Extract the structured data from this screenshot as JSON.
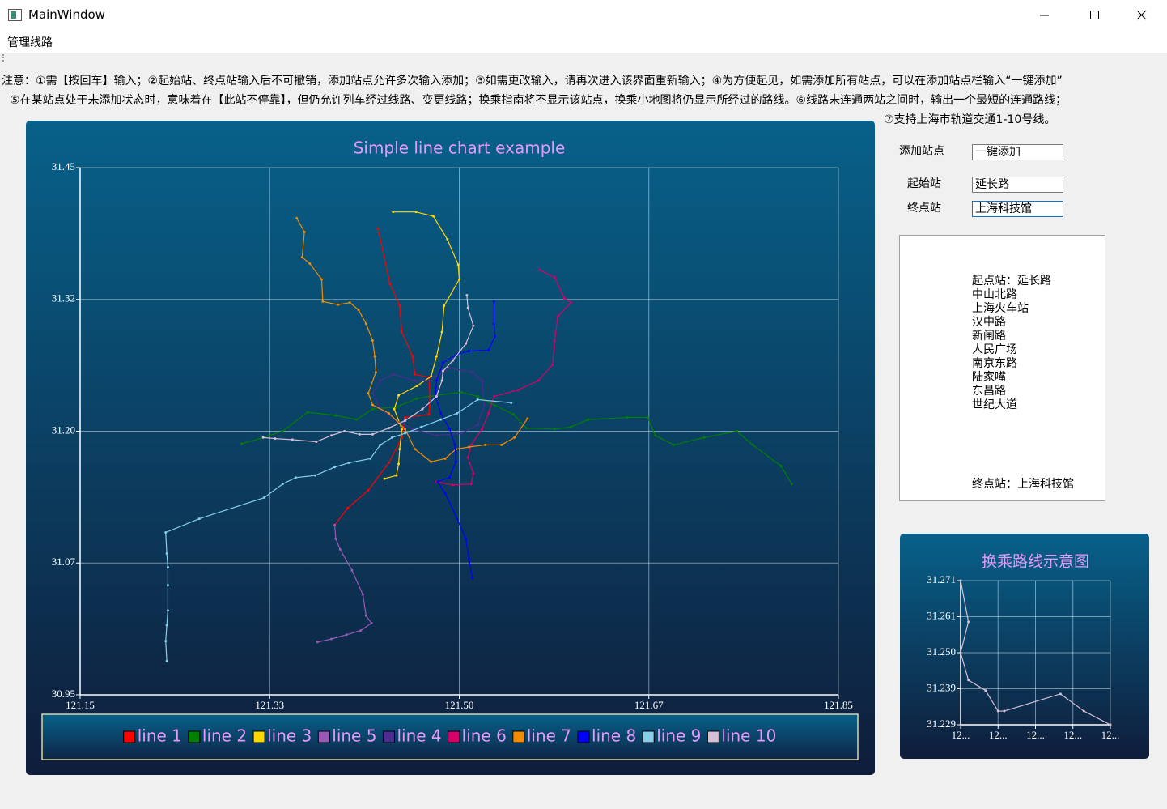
{
  "window": {
    "title": "MainWindow"
  },
  "menu": [
    "管理线路"
  ],
  "notes": [
    "注意：①需【按回车】输入；②起始站、终点站输入后不可撤销，添加站点允许多次输入添加；③如需更改输入，请再次进入该界面重新输入；④为方便起见，如需添加所有站点，可以在添加站点栏输入“一键添加”",
    "⑤在某站点处于未添加状态时，意味着在【此站不停靠】，但仍允许列车经过线路、变更线路；换乘指南将不显示该站点，换乘小地图将仍显示所经过的路线。⑥线路未连通两站之间时，输出一个最短的连通路线；",
    "⑦支持上海市轨道交通1-10号线。"
  ],
  "form": {
    "add_label": "添加站点",
    "add_value": "一键添加",
    "start_label": "起始站",
    "start_value": "延长路",
    "end_label": "终点站",
    "end_value": "上海科技馆"
  },
  "route_text": {
    "start": "起点站：延长路",
    "stations": [
      "中山北路",
      "上海火车站",
      "汉中路",
      "新闸路",
      "人民广场",
      "南京东路",
      "陆家嘴",
      "东昌路",
      "世纪大道"
    ],
    "end": "终点站：上海科技馆"
  },
  "chart_data": [
    {
      "type": "line",
      "title": "Simple line chart example",
      "legend": "bottom",
      "grid": true,
      "xlim": [
        121.15,
        121.85
      ],
      "ylim": [
        30.95,
        31.45
      ],
      "xticks": [
        121.15,
        {
          "value": 121.325,
          "label": "121.33"
        },
        {
          "value": 121.5,
          "label": "121.50"
        },
        {
          "value": 121.675,
          "label": "121.67"
        },
        121.85
      ],
      "yticks": [
        30.95,
        {
          "value": 31.075,
          "label": "31.07"
        },
        {
          "value": 31.2,
          "label": "31.20"
        },
        {
          "value": 31.325,
          "label": "31.32"
        },
        31.45
      ],
      "series": [
        {
          "name": "line 1",
          "color": "#ff0000",
          "x": [
            121.425,
            121.436,
            121.445,
            121.447,
            121.457,
            121.459,
            121.472,
            121.473,
            121.472,
            121.45,
            121.447,
            121.435,
            121.416,
            121.397,
            121.385
          ],
          "values": [
            31.392,
            31.34,
            31.319,
            31.294,
            31.271,
            31.254,
            31.251,
            31.233,
            31.216,
            31.213,
            31.194,
            31.17,
            31.144,
            31.127,
            31.111
          ]
        },
        {
          "name": "line 2",
          "color": "#008000",
          "x": [
            121.299,
            121.319,
            121.337,
            121.36,
            121.386,
            121.405,
            121.42,
            121.442,
            121.461,
            121.479,
            121.502,
            121.517,
            121.532,
            121.55,
            121.562,
            121.588,
            121.603,
            121.619,
            121.655,
            121.674,
            121.681,
            121.698,
            121.726,
            121.756,
            121.771,
            121.797,
            121.807
          ],
          "values": [
            31.188,
            31.194,
            31.2,
            31.218,
            31.215,
            31.211,
            31.221,
            31.223,
            31.231,
            31.234,
            31.237,
            31.233,
            31.225,
            31.216,
            31.203,
            31.202,
            31.204,
            31.211,
            31.213,
            31.213,
            31.196,
            31.187,
            31.194,
            31.2,
            31.187,
            31.167,
            31.15
          ]
        },
        {
          "name": "line 3",
          "color": "#ffd700",
          "x": [
            121.439,
            121.46,
            121.476,
            121.489,
            121.499,
            121.5,
            121.486,
            121.484,
            121.479,
            121.474,
            121.461,
            121.444,
            121.44,
            121.447,
            121.445,
            121.444,
            121.442,
            121.431
          ],
          "values": [
            31.408,
            31.408,
            31.404,
            31.382,
            31.358,
            31.344,
            31.319,
            31.294,
            31.271,
            31.252,
            31.243,
            31.234,
            31.221,
            31.202,
            31.183,
            31.169,
            31.158,
            31.155
          ]
        },
        {
          "name": "line 5",
          "color": "#9b59b6",
          "x": [
            121.385,
            121.386,
            121.39,
            121.401,
            121.411,
            121.414,
            121.419,
            121.409,
            121.396,
            121.382,
            121.369
          ],
          "values": [
            31.111,
            31.098,
            31.088,
            31.068,
            31.045,
            31.025,
            31.018,
            31.011,
            31.007,
            31.003,
            31.0
          ]
        },
        {
          "name": "line 4",
          "color": "#4b2c8f",
          "x": [
            121.439,
            121.459,
            121.472,
            121.491,
            121.512,
            121.521,
            121.523,
            121.517,
            121.502,
            121.479,
            121.457,
            121.442,
            121.427,
            121.42,
            121.427,
            121.439
          ],
          "values": [
            31.254,
            31.248,
            31.248,
            31.26,
            31.256,
            31.248,
            31.225,
            31.206,
            31.198,
            31.196,
            31.202,
            31.21,
            31.221,
            31.236,
            31.248,
            31.254
          ]
        },
        {
          "name": "line 6",
          "color": "#d6006a",
          "x": [
            121.574,
            121.588,
            121.597,
            121.603,
            121.591,
            121.588,
            121.586,
            121.573,
            121.554,
            121.532,
            121.527,
            121.521,
            121.511,
            121.508,
            121.513,
            121.511,
            121.494,
            121.479
          ],
          "values": [
            31.353,
            31.346,
            31.326,
            31.322,
            31.309,
            31.286,
            31.263,
            31.248,
            31.239,
            31.233,
            31.217,
            31.202,
            31.187,
            31.175,
            31.16,
            31.15,
            31.149,
            31.152
          ]
        },
        {
          "name": "line 7",
          "color": "#f08c00",
          "x": [
            121.35,
            121.357,
            121.355,
            121.362,
            121.373,
            121.374,
            121.388,
            121.399,
            121.407,
            121.414,
            121.42,
            121.422,
            121.423,
            121.416,
            121.42,
            121.435,
            121.45,
            121.459,
            121.474,
            121.487,
            121.497,
            121.509,
            121.524,
            121.539,
            121.551,
            121.563
          ],
          "values": [
            31.402,
            31.389,
            31.365,
            31.359,
            31.344,
            31.323,
            31.32,
            31.322,
            31.315,
            31.302,
            31.286,
            31.271,
            31.256,
            31.236,
            31.225,
            31.217,
            31.202,
            31.183,
            31.171,
            31.174,
            31.183,
            31.185,
            31.187,
            31.187,
            31.194,
            31.212
          ]
        },
        {
          "name": "line 8",
          "color": "#0000ff",
          "x": [
            121.532,
            121.532,
            121.533,
            121.527,
            121.509,
            121.498,
            121.485,
            121.479,
            121.478,
            121.483,
            121.491,
            121.496,
            121.497,
            121.491,
            121.48,
            121.487,
            121.498,
            121.506,
            121.509,
            121.512
          ],
          "values": [
            31.323,
            31.302,
            31.29,
            31.277,
            31.276,
            31.273,
            31.265,
            31.248,
            31.233,
            31.217,
            31.202,
            31.187,
            31.171,
            31.156,
            31.152,
            31.141,
            31.117,
            31.098,
            31.079,
            31.061
          ]
        },
        {
          "name": "line 9",
          "color": "#87ceeb",
          "x": [
            121.23,
            121.229,
            121.23,
            121.231,
            121.231,
            121.231,
            121.23,
            121.229,
            121.26,
            121.32,
            121.337,
            121.349,
            121.367,
            121.385,
            121.398,
            121.418,
            121.427,
            121.438,
            121.45,
            121.465,
            121.483,
            121.498,
            121.517,
            121.548
          ],
          "values": [
            30.982,
            31.001,
            31.016,
            31.03,
            31.054,
            31.071,
            31.084,
            31.104,
            31.117,
            31.137,
            31.15,
            31.156,
            31.158,
            31.166,
            31.17,
            31.174,
            31.187,
            31.194,
            31.198,
            31.204,
            31.211,
            31.217,
            31.23,
            31.227
          ]
        },
        {
          "name": "line 10",
          "color": "#d8bfd8",
          "x": [
            121.319,
            121.33,
            121.346,
            121.368,
            121.382,
            121.394,
            121.408,
            121.42,
            121.435,
            121.45,
            121.466,
            121.479,
            121.484,
            121.485,
            121.494,
            121.506,
            121.513,
            121.508,
            121.507
          ],
          "values": [
            31.194,
            31.193,
            31.192,
            31.19,
            31.196,
            31.2,
            31.197,
            31.197,
            31.203,
            31.21,
            31.221,
            31.233,
            31.248,
            31.257,
            31.267,
            31.283,
            31.3,
            31.317,
            31.329
          ]
        }
      ]
    },
    {
      "type": "line",
      "title": "换乘路线示意图",
      "grid": true,
      "color": "#d8bfd8",
      "xlim": [
        121.452,
        121.548
      ],
      "ylim": [
        31.229,
        31.271
      ],
      "xticks": [
        {
          "value": 121.452,
          "label": "12..."
        },
        {
          "value": 121.476,
          "label": "12..."
        },
        {
          "value": 121.5,
          "label": "12..."
        },
        {
          "value": 121.524,
          "label": "12..."
        },
        {
          "value": 121.548,
          "label": "12..."
        }
      ],
      "yticks": [
        31.229,
        {
          "value": 31.2395,
          "label": "31.239"
        },
        {
          "value": 31.25,
          "label": "31.250"
        },
        {
          "value": 31.2605,
          "label": "31.261"
        },
        31.271
      ],
      "x": [
        121.452,
        121.457,
        121.452,
        121.457,
        121.468,
        121.476,
        121.48,
        121.516,
        121.531,
        121.548
      ],
      "values": [
        31.271,
        31.259,
        31.25,
        31.242,
        31.239,
        31.233,
        31.233,
        31.238,
        31.233,
        31.229
      ]
    }
  ]
}
